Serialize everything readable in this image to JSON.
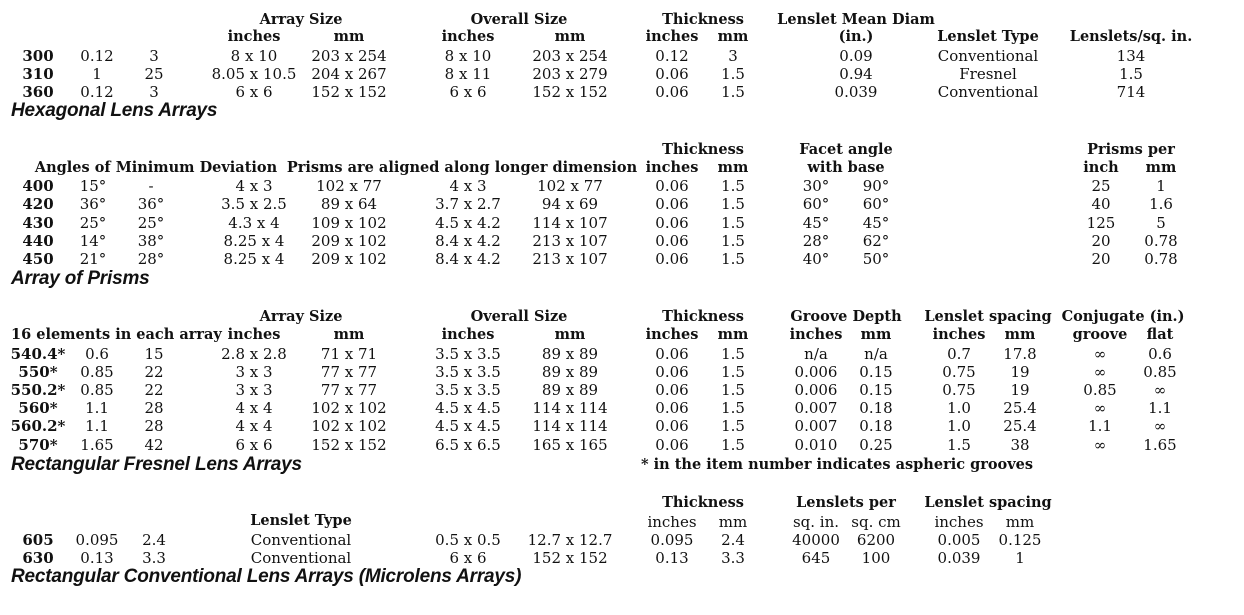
{
  "hexagonal": {
    "title": "Hexagonal Lens Arrays",
    "headers": {
      "array_size": "Array Size",
      "array_inches": "inches",
      "array_mm": "mm",
      "overall_size": "Overall Size",
      "overall_inches": "inches",
      "overall_mm": "mm",
      "thickness": "Thickness",
      "thick_inches": "inches",
      "thick_mm": "mm",
      "lenslet_mean_diam": "Lenslet Mean Diam",
      "lenslet_mean_diam_unit": "(in.)",
      "lenslet_type": "Lenslet Type",
      "lenslets_per_sq_in": "Lenslets/sq. in."
    },
    "rows": [
      [
        "300",
        "0.12",
        "3",
        "8 x 10",
        "203 x 254",
        "8 x 10",
        "203 x 254",
        "0.12",
        "3",
        "0.09",
        "Conventional",
        "134"
      ],
      [
        "310",
        "1",
        "25",
        "8.05 x 10.5",
        "204 x 267",
        "8 x 11",
        "203 x 279",
        "0.06",
        "1.5",
        "0.94",
        "Fresnel",
        "1.5"
      ],
      [
        "360",
        "0.12",
        "3",
        "6 x 6",
        "152 x 152",
        "6 x 6",
        "152 x 152",
        "0.06",
        "1.5",
        "0.039",
        "Conventional",
        "714"
      ]
    ]
  },
  "prisms": {
    "title": "Array of Prisms",
    "headers": {
      "thickness": "Thickness",
      "thick_inches": "inches",
      "thick_mm": "mm",
      "facet_angle": "Facet angle",
      "facet_with_base": "with base",
      "prisms_per": "Prisms per",
      "per_inch": "inch",
      "per_mm": "mm",
      "angles_min_dev": "Angles of Minimum Deviation",
      "aligned": "Prisms are aligned along longer dimension"
    },
    "rows": [
      [
        "400",
        "15°",
        "-",
        "4 x 3",
        "102 x 77",
        "4 x 3",
        "102 x 77",
        "0.06",
        "1.5",
        "30°",
        "90°",
        "25",
        "1"
      ],
      [
        "420",
        "36°",
        "36°",
        "3.5 x 2.5",
        "89 x 64",
        "3.7 x 2.7",
        "94 x 69",
        "0.06",
        "1.5",
        "60°",
        "60°",
        "40",
        "1.6"
      ],
      [
        "430",
        "25°",
        "25°",
        "4.3 x 4",
        "109 x 102",
        "4.5 x 4.2",
        "114 x 107",
        "0.06",
        "1.5",
        "45°",
        "45°",
        "125",
        "5"
      ],
      [
        "440",
        "14°",
        "38°",
        "8.25 x 4",
        "209 x 102",
        "8.4 x 4.2",
        "213 x 107",
        "0.06",
        "1.5",
        "28°",
        "62°",
        "20",
        "0.78"
      ],
      [
        "450",
        "21°",
        "28°",
        "8.25 x 4",
        "209 x 102",
        "8.4 x 4.2",
        "213 x 107",
        "0.06",
        "1.5",
        "40°",
        "50°",
        "20",
        "0.78"
      ]
    ]
  },
  "fresnel": {
    "title": "Rectangular Fresnel Lens Arrays",
    "note": "* in the item number indicates aspheric grooves",
    "headers": {
      "array_size": "Array Size",
      "elements": "16 elements in each array",
      "array_inches": "inches",
      "array_mm": "mm",
      "overall_size": "Overall Size",
      "overall_inches": "inches",
      "overall_mm": "mm",
      "thickness": "Thickness",
      "thick_inches": "inches",
      "thick_mm": "mm",
      "groove_depth": "Groove Depth",
      "groove_inches": "inches",
      "groove_mm": "mm",
      "lenslet_spacing": "Lenslet spacing",
      "spacing_inches": "inches",
      "spacing_mm": "mm",
      "conjugate": "Conjugate (in.)",
      "conj_groove": "groove",
      "conj_flat": "flat"
    },
    "rows": [
      [
        "540.4*",
        "0.6",
        "15",
        "2.8 x 2.8",
        "71 x 71",
        "3.5 x 3.5",
        "89 x 89",
        "0.06",
        "1.5",
        "n/a",
        "n/a",
        "0.7",
        "17.8",
        "∞",
        "0.6"
      ],
      [
        "550*",
        "0.85",
        "22",
        "3 x 3",
        "77 x 77",
        "3.5 x 3.5",
        "89 x 89",
        "0.06",
        "1.5",
        "0.006",
        "0.15",
        "0.75",
        "19",
        "∞",
        "0.85"
      ],
      [
        "550.2*",
        "0.85",
        "22",
        "3 x 3",
        "77 x 77",
        "3.5 x 3.5",
        "89 x 89",
        "0.06",
        "1.5",
        "0.006",
        "0.15",
        "0.75",
        "19",
        "0.85",
        "∞"
      ],
      [
        "560*",
        "1.1",
        "28",
        "4 x 4",
        "102 x 102",
        "4.5 x 4.5",
        "114 x 114",
        "0.06",
        "1.5",
        "0.007",
        "0.18",
        "1.0",
        "25.4",
        "∞",
        "1.1"
      ],
      [
        "560.2*",
        "1.1",
        "28",
        "4 x 4",
        "102 x 102",
        "4.5 x 4.5",
        "114 x 114",
        "0.06",
        "1.5",
        "0.007",
        "0.18",
        "1.0",
        "25.4",
        "1.1",
        "∞"
      ],
      [
        "570*",
        "1.65",
        "42",
        "6 x 6",
        "152 x 152",
        "6.5 x 6.5",
        "165 x 165",
        "0.06",
        "1.5",
        "0.010",
        "0.25",
        "1.5",
        "38",
        "∞",
        "1.65"
      ]
    ]
  },
  "microlens": {
    "title": "Rectangular Conventional Lens Arrays (Microlens Arrays)",
    "headers": {
      "thickness": "Thickness",
      "thick_inches": "inches",
      "thick_mm": "mm",
      "lenslets_per": "Lenslets per",
      "per_sq_in": "sq. in.",
      "per_sq_cm": "sq. cm",
      "lenslet_spacing": "Lenslet spacing",
      "spacing_inches": "inches",
      "spacing_mm": "mm",
      "lenslet_type": "Lenslet Type"
    },
    "rows": [
      [
        "605",
        "0.095",
        "2.4",
        "Conventional",
        "0.5 x 0.5",
        "12.7 x 12.7",
        "0.095",
        "2.4",
        "40000",
        "6200",
        "0.005",
        "0.125"
      ],
      [
        "630",
        "0.13",
        "3.3",
        "Conventional",
        "6 x 6",
        "152 x 152",
        "0.13",
        "3.3",
        "645",
        "100",
        "0.039",
        "1"
      ]
    ]
  }
}
